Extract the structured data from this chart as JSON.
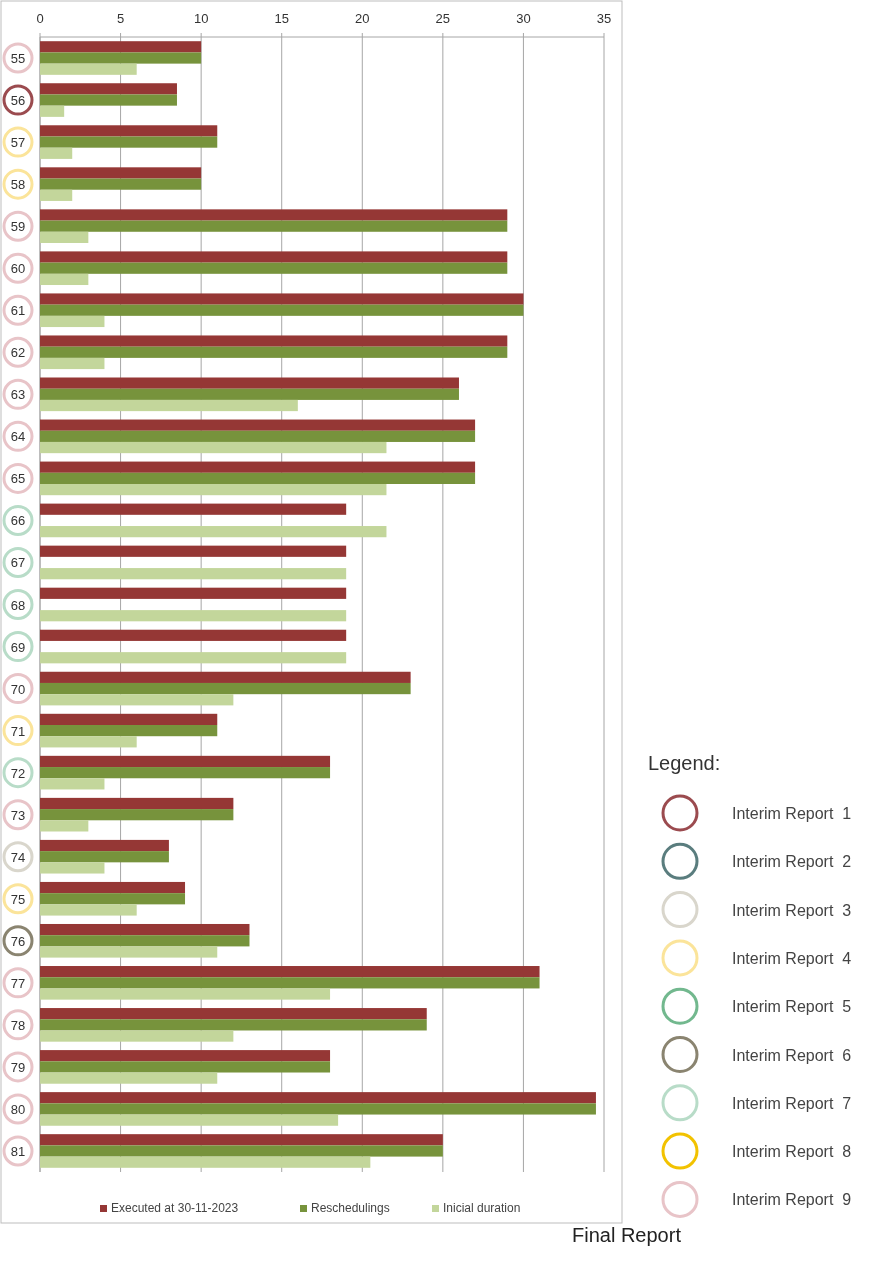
{
  "chart_data": {
    "type": "bar",
    "orientation": "horizontal",
    "categories": [
      "55",
      "56",
      "57",
      "58",
      "59",
      "60",
      "61",
      "62",
      "63",
      "64",
      "65",
      "66",
      "67",
      "68",
      "69",
      "70",
      "71",
      "72",
      "73",
      "74",
      "75",
      "76",
      "77",
      "78",
      "79",
      "80",
      "81"
    ],
    "series": [
      {
        "name": "Executed at 30-11-2023",
        "color": "#953735",
        "values": [
          10,
          8.5,
          11,
          10,
          29,
          29,
          30,
          29,
          26,
          27,
          27,
          19,
          19,
          19,
          19,
          23,
          11,
          18,
          12,
          8,
          9,
          13,
          31,
          24,
          18,
          34.5,
          25
        ]
      },
      {
        "name": "Reschedulings",
        "color": "#77933c",
        "values": [
          10,
          8.5,
          11,
          10,
          29,
          29,
          30,
          29,
          26,
          27,
          27,
          null,
          null,
          null,
          null,
          23,
          11,
          18,
          12,
          8,
          9,
          13,
          31,
          24,
          18,
          34.5,
          25
        ]
      },
      {
        "name": "Inicial duration",
        "color": "#c3d69b",
        "values": [
          6,
          1.5,
          2,
          2,
          3,
          3,
          4,
          4,
          16,
          21.5,
          21.5,
          21.5,
          19,
          19,
          19,
          12,
          6,
          4,
          3,
          4,
          6,
          11,
          18,
          12,
          11,
          18.5,
          20.5
        ]
      }
    ],
    "xlim": [
      0,
      35
    ],
    "xticks": [
      0,
      5,
      10,
      15,
      20,
      25,
      30,
      35
    ],
    "grid": "x",
    "legend": "bottom",
    "annotations": [
      "Legend:",
      "Interim Report  1",
      "Interim Report  2",
      "Interim Report  3",
      "Interim Report  4",
      "Interim Report  5",
      "Interim Report  6",
      "Interim Report  7",
      "Interim Report  8",
      "Interim Report  9",
      "Final Report"
    ]
  }
}
